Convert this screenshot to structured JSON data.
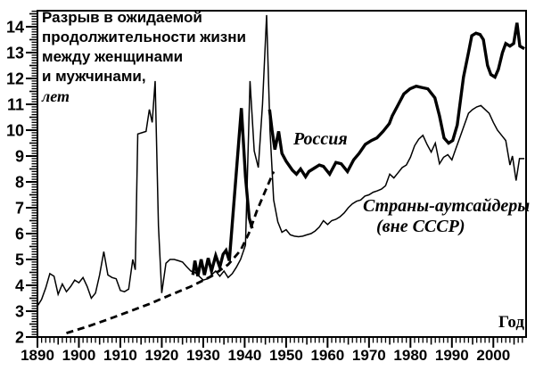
{
  "title": {
    "lines": [
      "Разрыв в ожидаемой",
      "продолжительности жизни",
      "между женщинами",
      "и мужчинами,"
    ],
    "unit": "лет"
  },
  "labels": {
    "russia": "Россия",
    "outsiders_line1": "Страны-аутсайдеры",
    "outsiders_line2": "(вне СССР)",
    "xaxis": "Год"
  },
  "colors": {
    "foreground": "#000000",
    "background": "#ffffff"
  },
  "chart_data": {
    "type": "line",
    "title": "Разрыв в ожидаемой продолжительности жизни между женщинами и мужчинами, лет",
    "xlabel": "Год",
    "ylabel": "лет",
    "grid": false,
    "legend_position": "inline-annotations",
    "x_axis": {
      "min": 1890,
      "max": 2007.9,
      "major_step": 10,
      "medium_step": 5,
      "minor_step": 1,
      "major_tick_labels": [
        "1890",
        "1900",
        "1910",
        "1920",
        "1930",
        "1940",
        "1950",
        "1960",
        "1970",
        "1980",
        "1990",
        "2000"
      ]
    },
    "y_axis": {
      "min": 2,
      "max": 14.62,
      "major_step": 1,
      "medium_step": 0.5,
      "minor_step": 0.1,
      "major_tick_labels": [
        "2",
        "3",
        "4",
        "5",
        "6",
        "7",
        "8",
        "9",
        "10",
        "11",
        "12",
        "13",
        "14"
      ]
    },
    "series": [
      {
        "name": "Россия",
        "line": "solid",
        "width": 3.4,
        "segments": [
          [
            [
              1927.5,
              4.4
            ],
            [
              1928,
              4.95
            ],
            [
              1928.7,
              4.35
            ],
            [
              1929.5,
              5.0
            ],
            [
              1930.3,
              4.4
            ],
            [
              1931.2,
              5.05
            ],
            [
              1932,
              4.55
            ],
            [
              1933,
              5.15
            ],
            [
              1934,
              4.7
            ],
            [
              1934.8,
              5.2
            ],
            [
              1935.5,
              5.35
            ],
            [
              1936.3,
              4.95
            ],
            [
              1938,
              8.4
            ],
            [
              1939.2,
              10.85
            ],
            [
              1940.2,
              8.2
            ],
            [
              1941.1,
              6.6
            ],
            [
              1941.8,
              6.2
            ]
          ],
          [
            [
              1946,
              10.8
            ],
            [
              1946.6,
              10.0
            ],
            [
              1947.3,
              9.25
            ],
            [
              1948.2,
              9.95
            ],
            [
              1949,
              9.1
            ],
            [
              1950,
              8.8
            ],
            [
              1951.5,
              8.45
            ],
            [
              1952.5,
              8.3
            ],
            [
              1953.5,
              8.5
            ],
            [
              1954.7,
              8.2
            ],
            [
              1955.5,
              8.4
            ],
            [
              1957,
              8.55
            ],
            [
              1958,
              8.65
            ],
            [
              1959,
              8.6
            ],
            [
              1960.5,
              8.3
            ],
            [
              1962,
              8.75
            ],
            [
              1963.3,
              8.7
            ],
            [
              1964.8,
              8.4
            ],
            [
              1966.3,
              8.85
            ],
            [
              1967.6,
              9.1
            ],
            [
              1969.1,
              9.45
            ],
            [
              1970.6,
              9.6
            ],
            [
              1971.9,
              9.7
            ],
            [
              1973.4,
              9.95
            ],
            [
              1974.9,
              10.25
            ],
            [
              1975.6,
              10.55
            ],
            [
              1977.1,
              11.0
            ],
            [
              1978.4,
              11.4
            ],
            [
              1979.9,
              11.6
            ],
            [
              1981.4,
              11.7
            ],
            [
              1982.7,
              11.65
            ],
            [
              1984.2,
              11.6
            ],
            [
              1985.9,
              11.25
            ],
            [
              1987,
              10.55
            ],
            [
              1988.1,
              9.7
            ],
            [
              1989.2,
              9.5
            ],
            [
              1990.2,
              9.6
            ],
            [
              1991.3,
              10.2
            ],
            [
              1992.8,
              12.05
            ],
            [
              1994,
              13.0
            ],
            [
              1994.8,
              13.65
            ],
            [
              1995.8,
              13.75
            ],
            [
              1996.8,
              13.7
            ],
            [
              1997.6,
              13.5
            ],
            [
              1998.6,
              12.5
            ],
            [
              1999.4,
              12.15
            ],
            [
              2000.4,
              12.05
            ],
            [
              2001.2,
              12.35
            ],
            [
              2002.2,
              13.0
            ],
            [
              2003,
              13.35
            ],
            [
              2004,
              13.25
            ],
            [
              2004.9,
              13.35
            ],
            [
              2005.7,
              14.15
            ],
            [
              2006.4,
              13.25
            ],
            [
              2007.5,
              13.15
            ]
          ]
        ]
      },
      {
        "name": "Страны-аутсайдеры (вне СССР)",
        "line": "solid",
        "width": 1.5,
        "segments": [
          [
            [
              1890,
              3.2
            ],
            [
              1891,
              3.45
            ],
            [
              1892,
              3.9
            ],
            [
              1893,
              4.45
            ],
            [
              1894,
              4.35
            ],
            [
              1895,
              3.65
            ],
            [
              1896,
              4.05
            ],
            [
              1897,
              3.75
            ],
            [
              1898,
              3.95
            ],
            [
              1899,
              4.2
            ],
            [
              1900,
              4.1
            ],
            [
              1901,
              4.3
            ],
            [
              1902,
              3.95
            ],
            [
              1903,
              3.5
            ],
            [
              1904,
              3.7
            ],
            [
              1905,
              4.4
            ],
            [
              1906,
              5.3
            ],
            [
              1907,
              4.4
            ],
            [
              1908,
              4.3
            ],
            [
              1909,
              4.25
            ],
            [
              1910,
              3.8
            ],
            [
              1911,
              3.75
            ],
            [
              1912,
              3.85
            ],
            [
              1913,
              5.0
            ],
            [
              1913.6,
              4.6
            ],
            [
              1914.2,
              9.85
            ],
            [
              1915.2,
              9.9
            ],
            [
              1916.2,
              9.95
            ],
            [
              1917,
              10.8
            ],
            [
              1917.7,
              10.3
            ],
            [
              1918.4,
              11.9
            ],
            [
              1919.2,
              6.3
            ],
            [
              1920,
              3.7
            ],
            [
              1921,
              4.85
            ],
            [
              1922,
              5.0
            ],
            [
              1923,
              5.0
            ],
            [
              1924,
              4.95
            ],
            [
              1925,
              4.9
            ],
            [
              1926,
              4.72
            ],
            [
              1927,
              4.55
            ],
            [
              1928,
              4.5
            ],
            [
              1929,
              4.35
            ],
            [
              1930,
              4.2
            ],
            [
              1931,
              4.25
            ],
            [
              1932,
              4.4
            ],
            [
              1933,
              4.55
            ],
            [
              1934,
              4.35
            ],
            [
              1935,
              4.55
            ],
            [
              1936,
              4.3
            ],
            [
              1937,
              4.45
            ],
            [
              1938,
              4.7
            ],
            [
              1939,
              5.0
            ],
            [
              1940.2,
              5.55
            ],
            [
              1941.3,
              11.9
            ],
            [
              1942.3,
              9.2
            ],
            [
              1943.3,
              8.55
            ],
            [
              1944.3,
              11.0
            ],
            [
              1945.3,
              14.45
            ],
            [
              1946.1,
              10.0
            ],
            [
              1947,
              7.3
            ],
            [
              1948,
              6.45
            ],
            [
              1949,
              6.05
            ],
            [
              1950,
              6.15
            ],
            [
              1951,
              5.95
            ],
            [
              1952,
              5.9
            ],
            [
              1953,
              5.88
            ],
            [
              1954,
              5.9
            ],
            [
              1955,
              5.95
            ],
            [
              1956,
              6.0
            ],
            [
              1957,
              6.1
            ],
            [
              1958,
              6.25
            ],
            [
              1959,
              6.5
            ],
            [
              1960,
              6.35
            ],
            [
              1961,
              6.5
            ],
            [
              1962,
              6.55
            ],
            [
              1963,
              6.65
            ],
            [
              1964,
              6.8
            ],
            [
              1965,
              7.0
            ],
            [
              1966,
              7.15
            ],
            [
              1967,
              7.25
            ],
            [
              1968,
              7.3
            ],
            [
              1969,
              7.45
            ],
            [
              1970,
              7.5
            ],
            [
              1971,
              7.6
            ],
            [
              1972,
              7.65
            ],
            [
              1973,
              7.72
            ],
            [
              1974,
              7.85
            ],
            [
              1975,
              8.3
            ],
            [
              1976,
              8.15
            ],
            [
              1977,
              8.35
            ],
            [
              1978,
              8.55
            ],
            [
              1979,
              8.65
            ],
            [
              1980,
              8.95
            ],
            [
              1981,
              9.4
            ],
            [
              1982,
              9.65
            ],
            [
              1983,
              9.8
            ],
            [
              1984,
              9.45
            ],
            [
              1985,
              9.15
            ],
            [
              1986,
              9.5
            ],
            [
              1987,
              8.7
            ],
            [
              1988,
              8.95
            ],
            [
              1989,
              9.05
            ],
            [
              1990,
              8.85
            ],
            [
              1991,
              9.3
            ],
            [
              1992,
              9.75
            ],
            [
              1993,
              10.2
            ],
            [
              1994,
              10.65
            ],
            [
              1995,
              10.8
            ],
            [
              1996,
              10.9
            ],
            [
              1997,
              10.95
            ],
            [
              1998,
              10.8
            ],
            [
              1999,
              10.65
            ],
            [
              2000,
              10.3
            ],
            [
              2001,
              10.0
            ],
            [
              2002,
              9.8
            ],
            [
              2003,
              9.6
            ],
            [
              2004,
              8.65
            ],
            [
              2004.6,
              9.0
            ],
            [
              2005.5,
              8.05
            ],
            [
              2006.3,
              8.9
            ],
            [
              2007.5,
              8.9
            ]
          ]
        ]
      },
      {
        "name": "пунктирный тренд",
        "line": "dashed",
        "width": 2.8,
        "dash": "8 5",
        "segments": [
          [
            [
              1897,
              2.15
            ],
            [
              1902,
              2.4
            ],
            [
              1907,
              2.68
            ],
            [
              1912,
              2.98
            ],
            [
              1917,
              3.28
            ],
            [
              1922,
              3.62
            ],
            [
              1927,
              3.95
            ],
            [
              1932,
              4.35
            ],
            [
              1936,
              4.8
            ],
            [
              1939,
              5.35
            ],
            [
              1941,
              6.0
            ],
            [
              1943,
              6.9
            ],
            [
              1945,
              7.65
            ],
            [
              1947,
              8.4
            ]
          ]
        ]
      }
    ]
  }
}
